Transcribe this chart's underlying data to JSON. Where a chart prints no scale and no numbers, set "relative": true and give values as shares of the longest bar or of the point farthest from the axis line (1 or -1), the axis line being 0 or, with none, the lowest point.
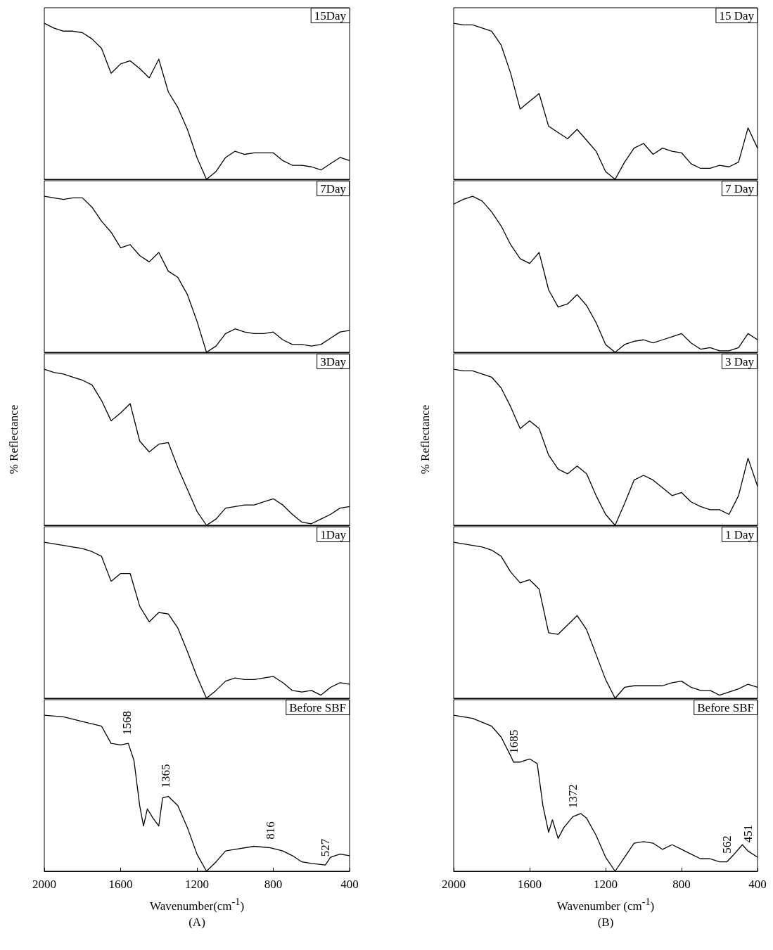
{
  "chart_data": [
    {
      "type": "line",
      "title": "15Day",
      "relative": true,
      "tick_labels": false,
      "categories": [
        null,
        null,
        null,
        null,
        null,
        null,
        null,
        null,
        null,
        null,
        null,
        null,
        null,
        null,
        null,
        null,
        null,
        null,
        null,
        null,
        null,
        null,
        null,
        null,
        null,
        null,
        null,
        null,
        null,
        null,
        null,
        null,
        null
      ],
      "series": [
        {
          "color": "#000000",
          "values": [
            1.0,
            0.97,
            0.95,
            0.95,
            0.94,
            0.9,
            0.84,
            0.68,
            0.74,
            0.76,
            0.71,
            0.65,
            0.77,
            0.56,
            0.46,
            0.32,
            0.14,
            0,
            0.05,
            0.14,
            0.18,
            0.16,
            0.17,
            0.17,
            0.17,
            0.12,
            0.09,
            0.09,
            0.08,
            0.06,
            0.1,
            0.14,
            0.12
          ]
        }
      ]
    },
    {
      "type": "line",
      "title": "15 Day",
      "relative": true,
      "tick_labels": false,
      "categories": [
        null,
        null,
        null,
        null,
        null,
        null,
        null,
        null,
        null,
        null,
        null,
        null,
        null,
        null,
        null,
        null,
        null,
        null,
        null,
        null,
        null,
        null,
        null,
        null,
        null,
        null,
        null,
        null,
        null,
        null,
        null,
        null,
        null
      ],
      "series": [
        {
          "color": "#000000",
          "values": [
            1,
            0.99,
            0.99,
            0.97,
            0.95,
            0.86,
            0.68,
            0.45,
            0.5,
            0.55,
            0.34,
            0.3,
            0.26,
            0.32,
            0.25,
            0.18,
            0.05,
            0,
            0.11,
            0.2,
            0.23,
            0.16,
            0.2,
            0.18,
            0.17,
            0.1,
            0.07,
            0.07,
            0.09,
            0.08,
            0.11,
            0.33,
            0.2
          ]
        }
      ]
    },
    {
      "type": "line",
      "title": "7Day",
      "relative": true,
      "tick_labels": false,
      "categories": [
        null,
        null,
        null,
        null,
        null,
        null,
        null,
        null,
        null,
        null,
        null,
        null,
        null,
        null,
        null,
        null,
        null,
        null,
        null,
        null,
        null,
        null,
        null,
        null,
        null,
        null,
        null,
        null,
        null,
        null,
        null,
        null,
        null
      ],
      "series": [
        {
          "color": "#000000",
          "values": [
            1,
            0.99,
            0.98,
            0.99,
            0.99,
            0.93,
            0.84,
            0.77,
            0.67,
            0.69,
            0.62,
            0.58,
            0.64,
            0.52,
            0.48,
            0.37,
            0.2,
            0,
            0.04,
            0.12,
            0.15,
            0.13,
            0.12,
            0.12,
            0.13,
            0.08,
            0.05,
            0.05,
            0.04,
            0.05,
            0.09,
            0.13,
            0.14
          ]
        }
      ]
    },
    {
      "type": "line",
      "title": "7 Day",
      "relative": true,
      "tick_labels": false,
      "categories": [
        null,
        null,
        null,
        null,
        null,
        null,
        null,
        null,
        null,
        null,
        null,
        null,
        null,
        null,
        null,
        null,
        null,
        null,
        null,
        null,
        null,
        null,
        null,
        null,
        null,
        null,
        null,
        null,
        null,
        null,
        null,
        null,
        null
      ],
      "series": [
        {
          "color": "#000000",
          "values": [
            0.95,
            0.98,
            1,
            0.97,
            0.9,
            0.81,
            0.69,
            0.6,
            0.57,
            0.64,
            0.4,
            0.29,
            0.31,
            0.37,
            0.3,
            0.19,
            0.05,
            0,
            0.05,
            0.07,
            0.08,
            0.06,
            0.08,
            0.1,
            0.12,
            0.06,
            0.02,
            0.03,
            0.01,
            0.01,
            0.03,
            0.12,
            0.08
          ]
        }
      ]
    },
    {
      "type": "line",
      "title": "3Day",
      "ylabel": "% Reflectance",
      "relative": true,
      "tick_labels": false,
      "categories": [
        null,
        null,
        null,
        null,
        null,
        null,
        null,
        null,
        null,
        null,
        null,
        null,
        null,
        null,
        null,
        null,
        null,
        null,
        null,
        null,
        null,
        null,
        null,
        null,
        null,
        null,
        null,
        null,
        null,
        null,
        null,
        null,
        null
      ],
      "series": [
        {
          "color": "#000000",
          "values": [
            1,
            0.98,
            0.97,
            0.95,
            0.93,
            0.9,
            0.8,
            0.67,
            0.72,
            0.78,
            0.54,
            0.47,
            0.52,
            0.53,
            0.37,
            0.23,
            0.09,
            0,
            0.04,
            0.11,
            0.12,
            0.13,
            0.13,
            0.15,
            0.17,
            0.13,
            0.07,
            0.02,
            0.01,
            0.04,
            0.07,
            0.11,
            0.12
          ]
        }
      ]
    },
    {
      "type": "line",
      "title": "3 Day",
      "ylabel": "% Reflectance",
      "relative": true,
      "tick_labels": false,
      "categories": [
        null,
        null,
        null,
        null,
        null,
        null,
        null,
        null,
        null,
        null,
        null,
        null,
        null,
        null,
        null,
        null,
        null,
        null,
        null,
        null,
        null,
        null,
        null,
        null,
        null,
        null,
        null,
        null,
        null,
        null,
        null,
        null,
        null
      ],
      "series": [
        {
          "color": "#000000",
          "values": [
            1,
            0.99,
            0.99,
            0.97,
            0.95,
            0.88,
            0.76,
            0.62,
            0.67,
            0.62,
            0.45,
            0.36,
            0.33,
            0.38,
            0.33,
            0.19,
            0.07,
            0,
            0.14,
            0.29,
            0.32,
            0.29,
            0.24,
            0.19,
            0.21,
            0.15,
            0.12,
            0.1,
            0.1,
            0.07,
            0.19,
            0.43,
            0.25
          ]
        }
      ]
    },
    {
      "type": "line",
      "title": "1Day",
      "relative": true,
      "tick_labels": false,
      "categories": [
        null,
        null,
        null,
        null,
        null,
        null,
        null,
        null,
        null,
        null,
        null,
        null,
        null,
        null,
        null,
        null,
        null,
        null,
        null,
        null,
        null,
        null,
        null,
        null,
        null,
        null,
        null,
        null,
        null,
        null,
        null,
        null,
        null
      ],
      "series": [
        {
          "color": "#000000",
          "values": [
            1,
            0.99,
            0.98,
            0.97,
            0.96,
            0.94,
            0.91,
            0.75,
            0.8,
            0.8,
            0.59,
            0.49,
            0.55,
            0.54,
            0.45,
            0.3,
            0.14,
            0,
            0.05,
            0.11,
            0.13,
            0.12,
            0.12,
            0.13,
            0.14,
            0.1,
            0.05,
            0.04,
            0.05,
            0.02,
            0.07,
            0.1,
            0.09
          ]
        }
      ]
    },
    {
      "type": "line",
      "title": "1 Day",
      "relative": true,
      "tick_labels": false,
      "categories": [
        null,
        null,
        null,
        null,
        null,
        null,
        null,
        null,
        null,
        null,
        null,
        null,
        null,
        null,
        null,
        null,
        null,
        null,
        null,
        null,
        null,
        null,
        null,
        null,
        null,
        null,
        null,
        null,
        null,
        null,
        null,
        null,
        null
      ],
      "series": [
        {
          "color": "#000000",
          "values": [
            1,
            0.99,
            0.98,
            0.97,
            0.95,
            0.91,
            0.81,
            0.74,
            0.76,
            0.7,
            0.42,
            0.41,
            0.47,
            0.53,
            0.44,
            0.28,
            0.12,
            0,
            0.07,
            0.08,
            0.08,
            0.08,
            0.08,
            0.1,
            0.11,
            0.07,
            0.05,
            0.05,
            0.02,
            0.04,
            0.06,
            0.09,
            0.07
          ]
        }
      ]
    },
    {
      "type": "line",
      "title": "Before SBF",
      "xlabel": "Wavenumber(cm$^{-1}$)",
      "relative": true,
      "xlim": [
        2000,
        400
      ],
      "xticks": [
        2000,
        1600,
        1200,
        800,
        400
      ],
      "tick_labels": "x",
      "annotations": [
        {
          "text": "1568",
          "x": 1568,
          "y": 0.82
        },
        {
          "text": "1365",
          "x": 1365,
          "y": 0.48
        },
        {
          "text": "816",
          "x": 816,
          "y": 0.15
        },
        {
          "text": "527",
          "x": 527,
          "y": 0.04
        },
        "(A)"
      ],
      "series": [
        {
          "color": "#000000",
          "x": [
            2000,
            1900,
            1800,
            1700,
            1650,
            1600,
            1560,
            1530,
            1500,
            1480,
            1460,
            1430,
            1400,
            1380,
            1350,
            1300,
            1250,
            1200,
            1150,
            1100,
            1050,
            1000,
            900,
            816,
            750,
            700,
            650,
            600,
            527,
            500,
            450,
            400
          ],
          "values": [
            1,
            0.99,
            0.96,
            0.93,
            0.82,
            0.81,
            0.82,
            0.71,
            0.42,
            0.29,
            0.4,
            0.34,
            0.29,
            0.47,
            0.48,
            0.42,
            0.28,
            0.11,
            0,
            0.06,
            0.13,
            0.14,
            0.16,
            0.15,
            0.13,
            0.1,
            0.06,
            0.05,
            0.04,
            0.09,
            0.11,
            0.1
          ]
        }
      ]
    },
    {
      "type": "line",
      "title": "Before SBF",
      "xlabel": "Wavenumber (cm$^{-1}$)",
      "relative": true,
      "xlim": [
        2000,
        400
      ],
      "xticks": [
        2000,
        1600,
        1200,
        800,
        400
      ],
      "tick_labels": "x",
      "annotations": [
        {
          "text": "1685",
          "x": 1685,
          "y": 0.7
        },
        {
          "text": "1372",
          "x": 1372,
          "y": 0.35
        },
        {
          "text": "562",
          "x": 562,
          "y": 0.06
        },
        {
          "text": "451",
          "x": 451,
          "y": 0.13
        },
        "(B)"
      ],
      "series": [
        {
          "color": "#000000",
          "x": [
            2000,
            1900,
            1800,
            1750,
            1700,
            1685,
            1650,
            1600,
            1560,
            1530,
            1500,
            1480,
            1450,
            1420,
            1372,
            1330,
            1300,
            1250,
            1200,
            1150,
            1100,
            1050,
            1000,
            950,
            900,
            850,
            800,
            750,
            700,
            650,
            600,
            562,
            530,
            480,
            451,
            400
          ],
          "values": [
            1,
            0.98,
            0.93,
            0.86,
            0.74,
            0.7,
            0.7,
            0.72,
            0.69,
            0.42,
            0.25,
            0.33,
            0.21,
            0.28,
            0.35,
            0.37,
            0.34,
            0.23,
            0.09,
            0,
            0.09,
            0.18,
            0.19,
            0.18,
            0.14,
            0.17,
            0.14,
            0.11,
            0.08,
            0.08,
            0.06,
            0.06,
            0.1,
            0.17,
            0.13,
            0.09
          ]
        }
      ]
    }
  ]
}
